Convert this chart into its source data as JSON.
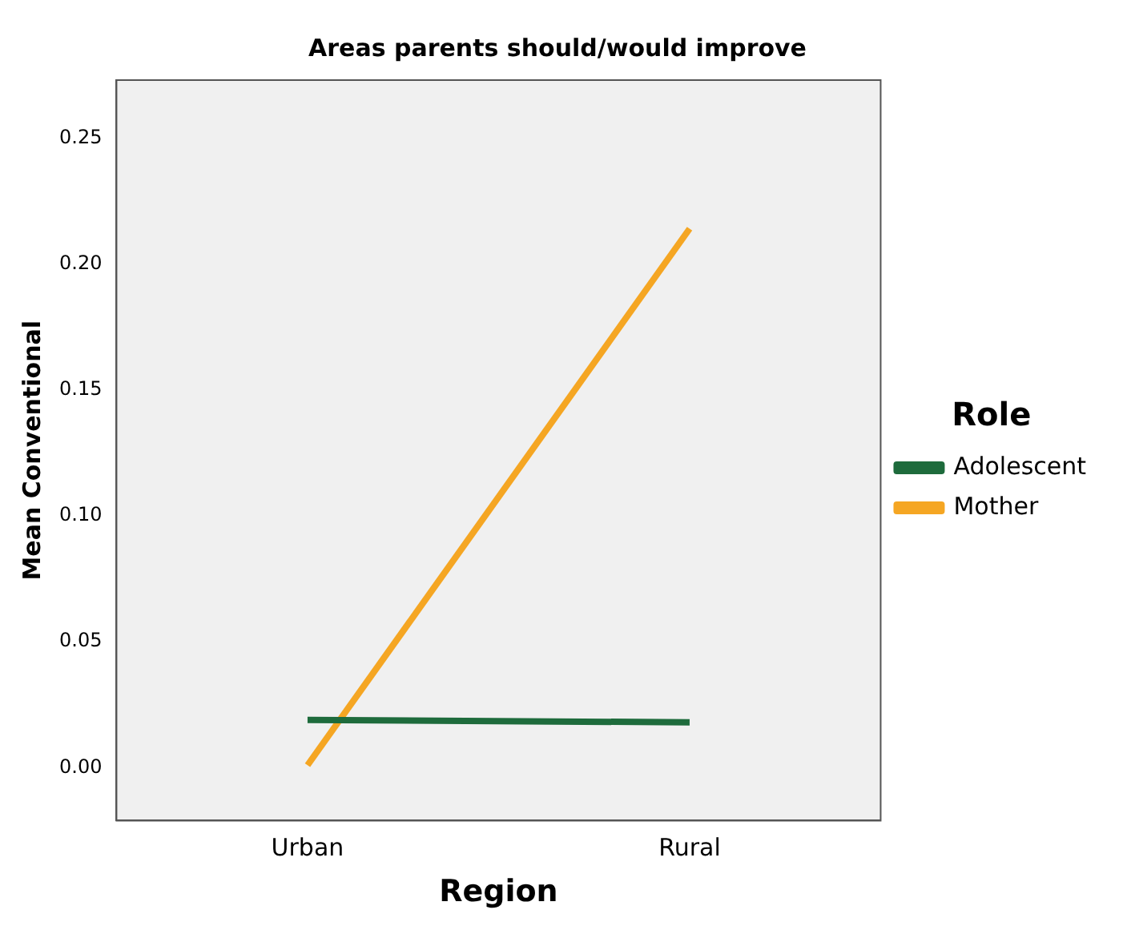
{
  "chart_data": {
    "type": "line",
    "title": "Areas parents should/would improve",
    "xlabel": "Region",
    "ylabel": "Mean Conventional",
    "legend_title": "Role",
    "categories": [
      "Urban",
      "Rural"
    ],
    "series": [
      {
        "name": "Adolescent",
        "color": "#1e6b3c",
        "values": [
          0.019,
          0.018
        ]
      },
      {
        "name": "Mother",
        "color": "#f5a623",
        "values": [
          0.001,
          0.214
        ]
      }
    ],
    "ylim": [
      -0.021,
      0.273
    ],
    "yticks": [
      {
        "value": 0,
        "label": "0.00"
      },
      {
        "value": 0.05,
        "label": "0.05"
      },
      {
        "value": 0.1,
        "label": "0.10"
      },
      {
        "value": 0.15,
        "label": "0.15"
      },
      {
        "value": 0.2,
        "label": "0.20"
      },
      {
        "value": 0.25,
        "label": "0.25"
      }
    ],
    "grid": false,
    "legend": "right",
    "marker": "none",
    "line_style": "solid"
  }
}
